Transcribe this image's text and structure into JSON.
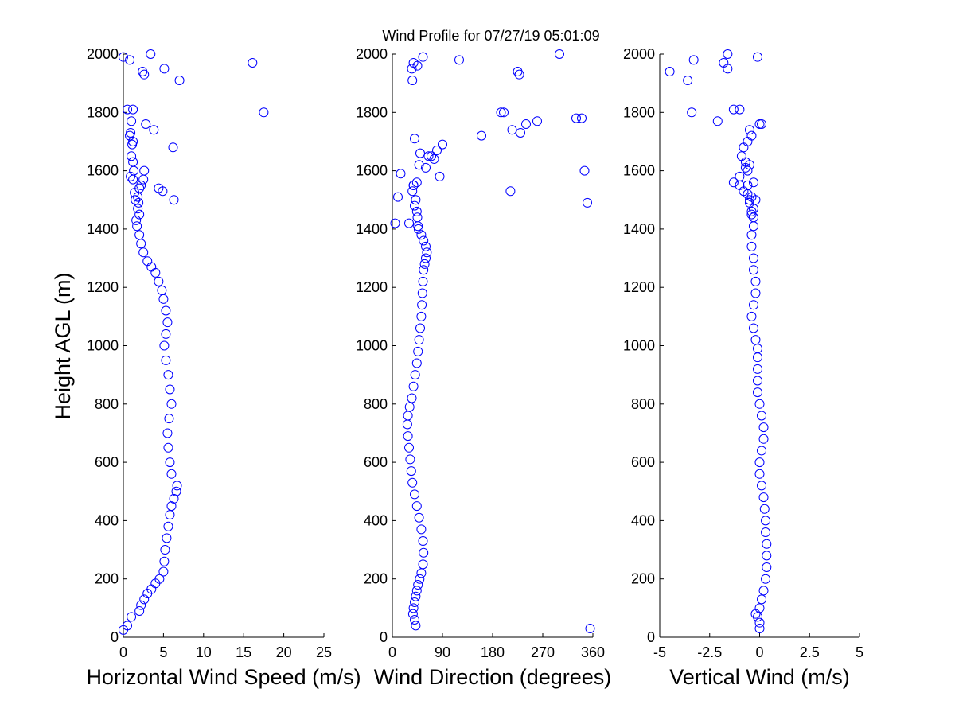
{
  "window": {
    "title": "Wind Profile for  07/27/19 05:01:09"
  },
  "colors": {
    "marker": "#0000ff",
    "axis": "#000000",
    "background": "#ffffff"
  },
  "chart_data": [
    {
      "type": "scatter",
      "title": "Wind Profile for  07/27/19 05:01:09",
      "xlabel": "Horizontal Wind Speed (m/s)",
      "ylabel": "Height AGL (m)",
      "xlim": [
        0,
        25
      ],
      "ylim": [
        0,
        2000
      ],
      "xticks": [
        "0",
        "5",
        "10",
        "15",
        "20",
        "25"
      ],
      "yticks": [
        "0",
        "200",
        "400",
        "600",
        "800",
        "1000",
        "1200",
        "1400",
        "1600",
        "1800",
        "2000"
      ],
      "marker": "open-circle",
      "grid": false,
      "legend": "none",
      "series": [
        {
          "x": [
            0,
            0.5,
            1,
            2,
            2.2,
            2.6,
            3.0,
            3.5,
            4.0,
            4.5,
            5.0,
            5.1,
            5.2,
            5.4,
            5.6,
            5.8,
            6.0,
            6.3,
            6.6,
            6.7,
            6.0,
            5.8,
            5.6,
            5.5,
            5.7,
            6.0,
            5.8,
            5.6,
            5.3,
            5.1,
            5.3,
            5.5,
            5.3,
            5.0,
            4.8,
            4.4,
            4.0,
            3.5,
            3.0,
            2.5,
            2.2,
            2.0,
            1.7,
            1.6,
            2.0,
            1.8,
            1.9,
            1.8,
            1.5,
            1.4,
            2.0,
            2.2,
            1.2,
            0.9,
            6.3,
            4.9,
            4.4,
            1.3,
            2.6,
            2.5,
            1.2,
            1.0,
            6.2,
            1.1,
            1.2,
            0.8,
            0.9,
            1.0,
            3.8,
            2.8,
            1.2,
            17.5,
            0.5,
            7.0,
            2.6,
            2.4,
            5.1,
            16.1,
            0.8,
            0,
            3.4
          ],
          "y": [
            25,
            40,
            70,
            90,
            110,
            130,
            150,
            165,
            185,
            200,
            225,
            260,
            300,
            340,
            380,
            420,
            450,
            475,
            500,
            520,
            560,
            600,
            650,
            700,
            750,
            800,
            850,
            900,
            950,
            1000,
            1040,
            1080,
            1120,
            1160,
            1190,
            1220,
            1250,
            1270,
            1290,
            1320,
            1350,
            1380,
            1410,
            1430,
            1450,
            1470,
            1490,
            1510,
            1500,
            1525,
            1540,
            1550,
            1570,
            1580,
            1500,
            1530,
            1540,
            1600,
            1600,
            1570,
            1630,
            1650,
            1680,
            1690,
            1700,
            1720,
            1730,
            1770,
            1740,
            1760,
            1810,
            1800,
            1810,
            1910,
            1930,
            1940,
            1950,
            1970,
            1980,
            1990,
            2000
          ]
        }
      ]
    },
    {
      "type": "scatter",
      "xlabel": "Wind Direction (degrees)",
      "xlim": [
        0,
        360
      ],
      "ylim": [
        0,
        2000
      ],
      "xticks": [
        "0",
        "90",
        "180",
        "270",
        "360"
      ],
      "yticks": [
        "0",
        "200",
        "400",
        "600",
        "800",
        "1000",
        "1200",
        "1400",
        "1600",
        "1800",
        "2000"
      ],
      "marker": "open-circle",
      "grid": false,
      "legend": "none",
      "series": [
        {
          "x": [
            42,
            40,
            37,
            38,
            40,
            42,
            44,
            46,
            49,
            52,
            55,
            56,
            55,
            52,
            48,
            44,
            40,
            36,
            34,
            32,
            30,
            28,
            27,
            28,
            31,
            35,
            38,
            41,
            44,
            46,
            48,
            50,
            52,
            53,
            54,
            55,
            56,
            58,
            60,
            62,
            60,
            56,
            52,
            47,
            46,
            45,
            44,
            40,
            36,
            38,
            42,
            44,
            30,
            15,
            10,
            5,
            48,
            50,
            60,
            70,
            80,
            90,
            85,
            75,
            65,
            40,
            120,
            160,
            200,
            215,
            230,
            240,
            260,
            300,
            330,
            345,
            350,
            340,
            212,
            195,
            225,
            228,
            38,
            45,
            36,
            35,
            55,
            38,
            355
          ],
          "y": [
            40,
            60,
            80,
            100,
            120,
            140,
            160,
            180,
            200,
            220,
            250,
            290,
            330,
            370,
            410,
            450,
            490,
            530,
            570,
            610,
            650,
            690,
            730,
            760,
            790,
            820,
            860,
            900,
            940,
            980,
            1020,
            1060,
            1100,
            1140,
            1180,
            1220,
            1260,
            1280,
            1300,
            1320,
            1340,
            1360,
            1380,
            1400,
            1410,
            1440,
            1460,
            1480,
            1530,
            1550,
            1500,
            1560,
            1420,
            1590,
            1510,
            1420,
            1620,
            1660,
            1610,
            1650,
            1670,
            1690,
            1580,
            1640,
            1650,
            1710,
            1980,
            1720,
            1800,
            1740,
            1730,
            1760,
            1770,
            2000,
            1780,
            1600,
            1490,
            1780,
            1530,
            1800,
            1940,
            1930,
            1970,
            1960,
            1910,
            1950,
            1990,
            1550,
            30
          ]
        }
      ]
    },
    {
      "type": "scatter",
      "xlabel": "Vertical Wind (m/s)",
      "xlim": [
        -5,
        5
      ],
      "ylim": [
        0,
        2000
      ],
      "xticks": [
        "-5",
        "-2.5",
        "0",
        "2.5",
        "5"
      ],
      "yticks": [
        "0",
        "200",
        "400",
        "600",
        "800",
        "1000",
        "1200",
        "1400",
        "1600",
        "1800",
        "2000"
      ],
      "marker": "open-circle",
      "grid": false,
      "legend": "none",
      "series": [
        {
          "x": [
            0.0,
            0.0,
            -0.1,
            -0.2,
            0.0,
            0.1,
            0.2,
            0.3,
            0.35,
            0.35,
            0.35,
            0.3,
            0.3,
            0.25,
            0.2,
            0.1,
            0.0,
            0.0,
            0.1,
            0.2,
            0.2,
            0.1,
            0.0,
            -0.1,
            -0.1,
            -0.1,
            -0.1,
            -0.1,
            -0.2,
            -0.3,
            -0.4,
            -0.3,
            -0.2,
            -0.2,
            -0.3,
            -0.3,
            -0.4,
            -0.4,
            -0.3,
            -0.3,
            -0.4,
            -0.5,
            -0.4,
            -0.3,
            -0.4,
            -0.5,
            -0.6,
            -0.8,
            -1.0,
            -1.3,
            -1.0,
            -0.6,
            -0.7,
            -0.5,
            -0.7,
            -0.9,
            -0.8,
            -0.6,
            -0.4,
            -0.5,
            -0.2,
            -0.6,
            0.1,
            0.0,
            -0.3,
            -1.0,
            -2.1,
            -3.4,
            -1.3,
            -4.5,
            -3.6,
            -1.6,
            -1.8,
            -3.3,
            -0.1,
            -1.6
          ],
          "y": [
            30,
            50,
            70,
            80,
            100,
            130,
            160,
            200,
            240,
            280,
            320,
            360,
            400,
            440,
            480,
            520,
            560,
            600,
            640,
            680,
            720,
            760,
            800,
            840,
            880,
            920,
            960,
            990,
            1020,
            1060,
            1100,
            1140,
            1180,
            1220,
            1260,
            1300,
            1340,
            1380,
            1410,
            1440,
            1460,
            1490,
            1510,
            1470,
            1450,
            1500,
            1520,
            1530,
            1550,
            1560,
            1580,
            1600,
            1610,
            1620,
            1630,
            1650,
            1680,
            1700,
            1720,
            1740,
            1500,
            1550,
            1760,
            1760,
            1560,
            1810,
            1770,
            1800,
            1810,
            1940,
            1910,
            1950,
            1970,
            1980,
            1990,
            2000
          ]
        }
      ]
    }
  ]
}
